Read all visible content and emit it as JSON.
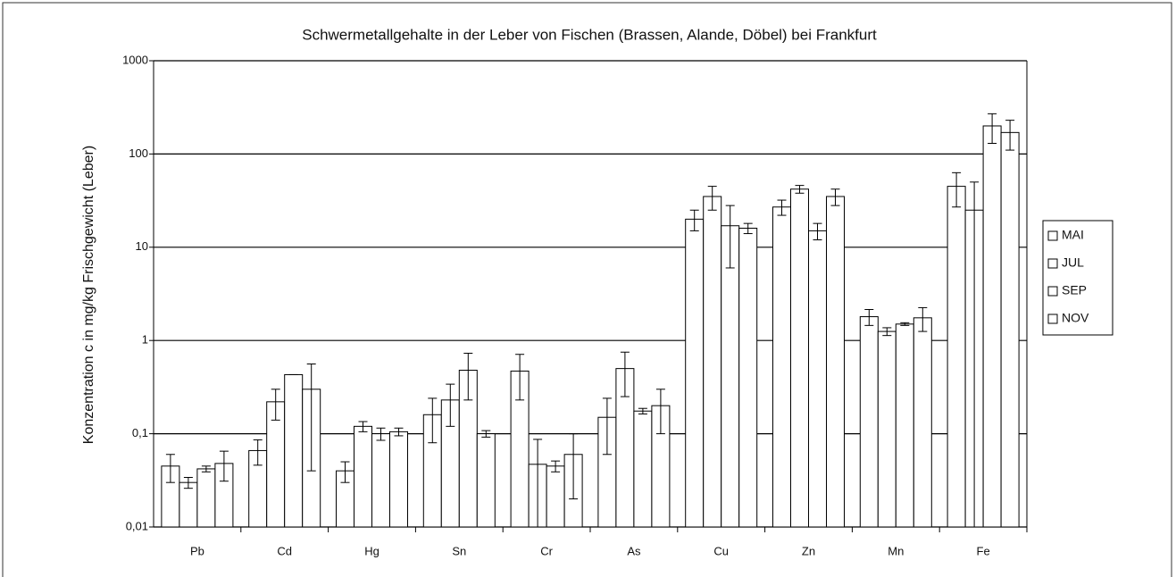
{
  "chart_data": {
    "type": "bar",
    "title": "Schwermetallgehalte in der Leber von Fischen (Brassen, Alande, Döbel) bei Frankfurt",
    "y_label": "Konzentration c in mg/kg Frischgewicht (Leber)",
    "categories": [
      "Pb",
      "Cd",
      "Hg",
      "Sn",
      "Cr",
      "As",
      "Cu",
      "Zn",
      "Mn",
      "Fe"
    ],
    "log_scale": true,
    "grid": true,
    "legend": "right",
    "ylim": [
      0.01,
      1000
    ],
    "yticks": [
      {
        "value": 0.01,
        "label": "0,01"
      },
      {
        "value": 0.1,
        "label": "0,1"
      },
      1,
      10,
      100,
      1000
    ],
    "series": [
      {
        "name": "MAI",
        "color": "#ffffff",
        "values": [
          0.045,
          0.066,
          0.04,
          0.16,
          0.47,
          0.15,
          20,
          27,
          1.8,
          45
        ],
        "errors": [
          0.015,
          0.02,
          0.01,
          0.08,
          0.24,
          0.09,
          5,
          5,
          0.35,
          18
        ]
      },
      {
        "name": "JUL",
        "color": "#ffffff",
        "values": [
          0.03,
          0.22,
          0.12,
          0.23,
          0.047,
          0.5,
          35,
          42,
          1.25,
          25
        ],
        "errors": [
          0.004,
          0.08,
          0.015,
          0.11,
          0.04,
          0.25,
          10,
          4,
          0.12,
          25
        ]
      },
      {
        "name": "SEP",
        "color": "#ffffff",
        "values": [
          0.042,
          0.43,
          0.1,
          0.48,
          0.045,
          0.175,
          17,
          15,
          1.5,
          200
        ],
        "errors": [
          0.003,
          0,
          0.015,
          0.25,
          0.006,
          0.012,
          11,
          3,
          0.05,
          70
        ]
      },
      {
        "name": "NOV",
        "color": "#ffffff",
        "values": [
          0.048,
          0.3,
          0.105,
          0.1,
          0.06,
          0.2,
          16,
          35,
          1.75,
          170
        ],
        "errors": [
          0.017,
          0.26,
          0.01,
          0.008,
          0.04,
          0.1,
          2,
          7,
          0.5,
          60
        ]
      }
    ]
  }
}
